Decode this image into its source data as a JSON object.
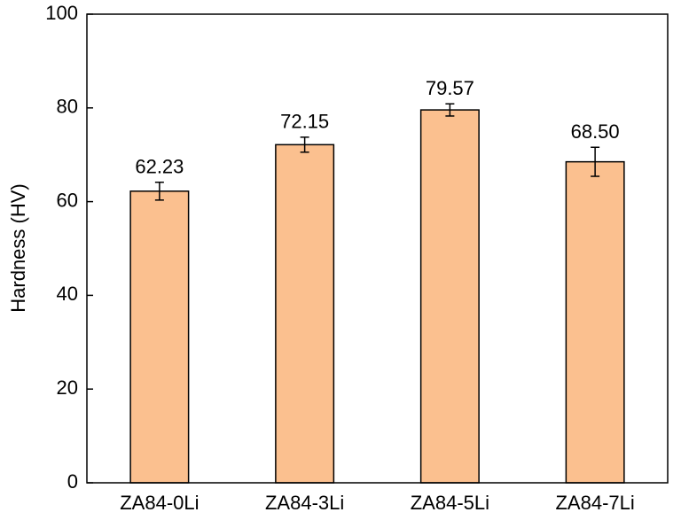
{
  "chart_data": {
    "type": "bar",
    "y_label": "Hardness (HV)",
    "categories": [
      "ZA84-0Li",
      "ZA84-3Li",
      "ZA84-5Li",
      "ZA84-7Li"
    ],
    "values": [
      62.23,
      72.15,
      79.57,
      68.5
    ],
    "value_labels": [
      "62.23",
      "72.15",
      "79.57",
      "68.50"
    ],
    "errors": [
      1.9,
      1.6,
      1.3,
      3.1
    ],
    "color": "#fbc08f",
    "ylim": [
      0,
      100
    ],
    "yticks": [
      0,
      20,
      40,
      60,
      80,
      100
    ]
  }
}
